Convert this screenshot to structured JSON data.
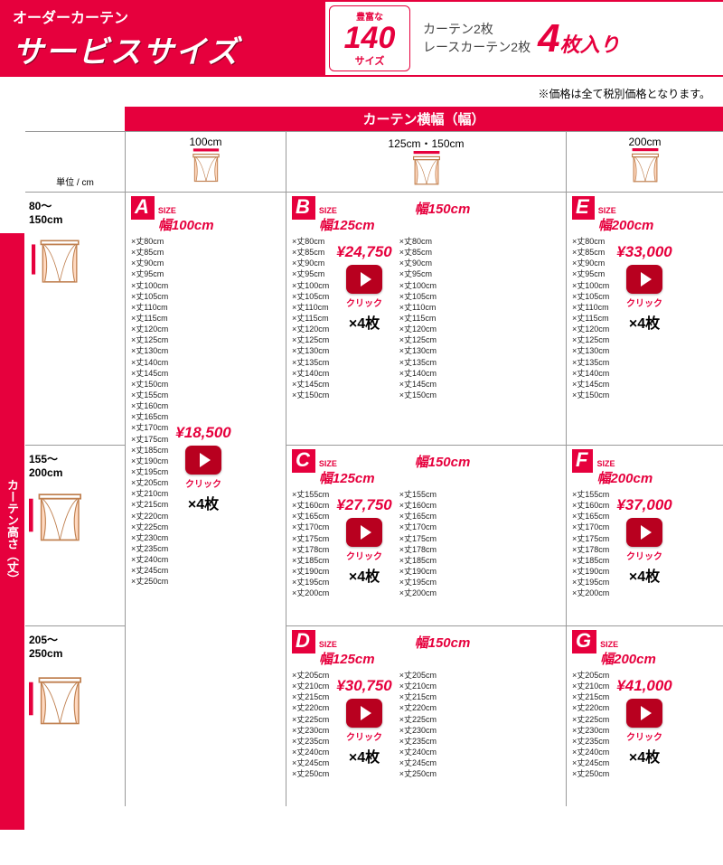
{
  "header": {
    "sub": "オーダーカーテン",
    "main": "サービスサイズ",
    "rich_label": "豊富な",
    "rich_num": "140",
    "rich_unit": "サイズ",
    "desc1": "カーテン2枚",
    "desc2": "レースカーテン2枚",
    "big_num": "4",
    "big_text": "枚入り"
  },
  "note": "※価格は全て税別価格となります。",
  "axis": {
    "width_label": "カーテン横幅（幅）",
    "height_label": "カーテン高さ（丈）",
    "unit": "単位 / cm",
    "widths": [
      "100cm",
      "125cm・150cm",
      "200cm"
    ],
    "heights": [
      {
        "label": "80～\n150cm"
      },
      {
        "label": "155～\n200cm"
      },
      {
        "label": "205～\n250cm"
      }
    ]
  },
  "blocks": {
    "A": {
      "letter": "A",
      "size_label": "SIZE",
      "width1": "幅100cm",
      "lengths": [
        "80cm",
        "85cm",
        "90cm",
        "95cm",
        "100cm",
        "105cm",
        "110cm",
        "115cm",
        "120cm",
        "125cm",
        "130cm",
        "140cm",
        "145cm",
        "150cm",
        "155cm",
        "160cm",
        "165cm",
        "170cm",
        "175cm",
        "185cm",
        "190cm",
        "195cm",
        "205cm",
        "210cm",
        "215cm",
        "220cm",
        "225cm",
        "230cm",
        "235cm",
        "240cm",
        "245cm",
        "250cm"
      ],
      "price": "¥18,500",
      "click": "クリック",
      "qty": "×4枚"
    },
    "B": {
      "letter": "B",
      "size_label": "SIZE",
      "width1": "幅125cm",
      "width2": "幅150cm",
      "lengths": [
        "80cm",
        "85cm",
        "90cm",
        "95cm",
        "100cm",
        "105cm",
        "110cm",
        "115cm",
        "120cm",
        "125cm",
        "130cm",
        "135cm",
        "140cm",
        "145cm",
        "150cm"
      ],
      "price": "¥24,750",
      "click": "クリック",
      "qty": "×4枚"
    },
    "C": {
      "letter": "C",
      "size_label": "SIZE",
      "width1": "幅125cm",
      "width2": "幅150cm",
      "lengths": [
        "155cm",
        "160cm",
        "165cm",
        "170cm",
        "175cm",
        "178cm",
        "185cm",
        "190cm",
        "195cm",
        "200cm"
      ],
      "price": "¥27,750",
      "click": "クリック",
      "qty": "×4枚"
    },
    "D": {
      "letter": "D",
      "size_label": "SIZE",
      "width1": "幅125cm",
      "width2": "幅150cm",
      "lengths": [
        "205cm",
        "210cm",
        "215cm",
        "220cm",
        "225cm",
        "230cm",
        "235cm",
        "240cm",
        "245cm",
        "250cm"
      ],
      "price": "¥30,750",
      "click": "クリック",
      "qty": "×4枚"
    },
    "E": {
      "letter": "E",
      "size_label": "SIZE",
      "width1": "幅200cm",
      "lengths": [
        "80cm",
        "85cm",
        "90cm",
        "95cm",
        "100cm",
        "105cm",
        "110cm",
        "115cm",
        "120cm",
        "125cm",
        "130cm",
        "135cm",
        "140cm",
        "145cm",
        "150cm"
      ],
      "price": "¥33,000",
      "click": "クリック",
      "qty": "×4枚"
    },
    "F": {
      "letter": "F",
      "size_label": "SIZE",
      "width1": "幅200cm",
      "lengths": [
        "155cm",
        "160cm",
        "165cm",
        "170cm",
        "175cm",
        "178cm",
        "185cm",
        "190cm",
        "195cm",
        "200cm"
      ],
      "price": "¥37,000",
      "click": "クリック",
      "qty": "×4枚"
    },
    "G": {
      "letter": "G",
      "size_label": "SIZE",
      "width1": "幅200cm",
      "lengths": [
        "205cm",
        "210cm",
        "215cm",
        "220cm",
        "225cm",
        "230cm",
        "235cm",
        "240cm",
        "245cm",
        "250cm"
      ],
      "price": "¥41,000",
      "click": "クリック",
      "qty": "×4枚"
    }
  },
  "colors": {
    "primary": "#e6003d",
    "play": "#b8001f",
    "curtain_fill": "#ffd9c0",
    "curtain_stroke": "#c08050"
  }
}
